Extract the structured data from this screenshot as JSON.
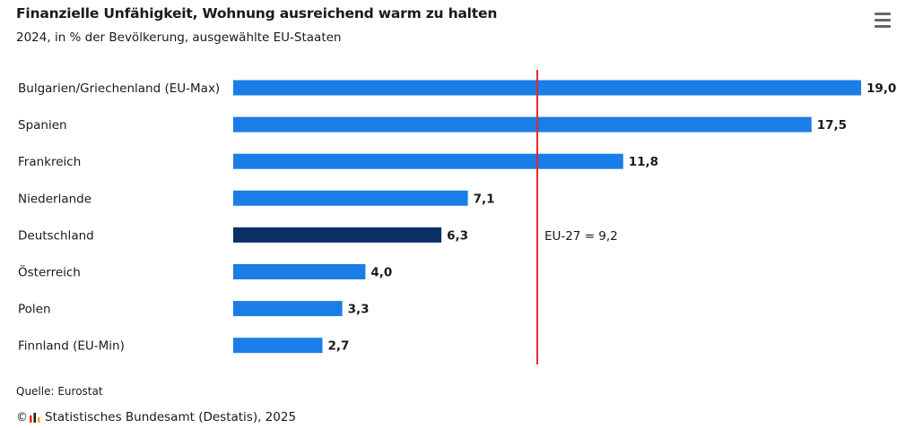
{
  "header": {
    "title": "Finanzielle Unfähigkeit, Wohnung ausreichend warm zu halten",
    "subtitle": "2024, in % der Bevölkerung, ausgewählte EU-Staaten",
    "menu_icon": "hamburger-menu-icon"
  },
  "chart_data": {
    "type": "bar",
    "orientation": "horizontal",
    "title": "Finanzielle Unfähigkeit, Wohnung ausreichend warm zu halten",
    "subtitle": "2024, in % der Bevölkerung, ausgewählte EU-Staaten",
    "categories": [
      "Bulgarien/Griechenland (EU-Max)",
      "Spanien",
      "Frankreich",
      "Niederlande",
      "Deutschland",
      "Österreich",
      "Polen",
      "Finnland (EU-Min)"
    ],
    "values": [
      19.0,
      17.5,
      11.8,
      7.1,
      6.3,
      4.0,
      3.3,
      2.7
    ],
    "value_labels": [
      "19,0",
      "17,5",
      "11,8",
      "7,1",
      "6,3",
      "4,0",
      "3,3",
      "2,7"
    ],
    "highlight_category": "Deutschland",
    "colors": {
      "bar": "#1a7ee6",
      "highlight": "#0b2f66",
      "reference_line": "#e8242b",
      "text": "#1a1a1a"
    },
    "reference_line": {
      "value": 9.2,
      "label": "EU-27 = 9,2"
    },
    "xlim": [
      0,
      19.0
    ],
    "xlabel": "",
    "ylabel": "",
    "grid": false,
    "legend": "none"
  },
  "footer": {
    "source": "Quelle: Eurostat",
    "copyright_symbol": "©",
    "publisher": "Statistisches Bundesamt (Destatis), 2025",
    "logo_icon": "destatis-logo-icon"
  }
}
